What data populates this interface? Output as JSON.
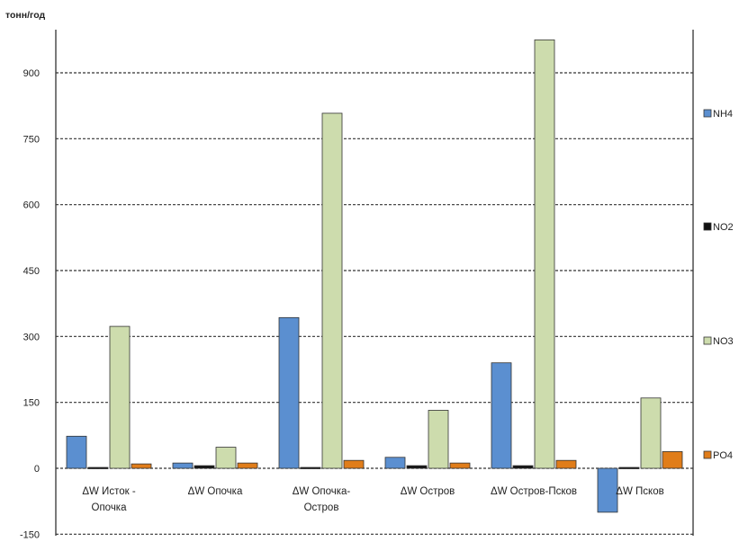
{
  "chart_data": {
    "type": "bar",
    "ylabel": "тонн/год",
    "ylim": [
      -150,
      1000
    ],
    "yticks": [
      -150,
      0,
      150,
      300,
      450,
      600,
      750,
      900
    ],
    "grid": true,
    "legend_position": "right",
    "categories": [
      [
        "ΔW Исток -",
        "Опочка"
      ],
      [
        "ΔW Опочка"
      ],
      [
        "ΔW Опочка-",
        "Остров"
      ],
      [
        "ΔW Остров"
      ],
      [
        "ΔW Остров-Псков"
      ],
      [
        "ΔW Псков"
      ]
    ],
    "series": [
      {
        "name": "NH4",
        "color": "#5b8fd0",
        "values": [
          73,
          12,
          343,
          25,
          240,
          -100
        ]
      },
      {
        "name": "NO2",
        "color": "#111111",
        "values": [
          2,
          6,
          2,
          6,
          6,
          2
        ]
      },
      {
        "name": "NO3",
        "color": "#cddcad",
        "values": [
          323,
          48,
          808,
          132,
          975,
          160
        ]
      },
      {
        "name": "PO4",
        "color": "#e07d1a",
        "values": [
          10,
          12,
          18,
          12,
          18,
          38
        ]
      }
    ]
  }
}
